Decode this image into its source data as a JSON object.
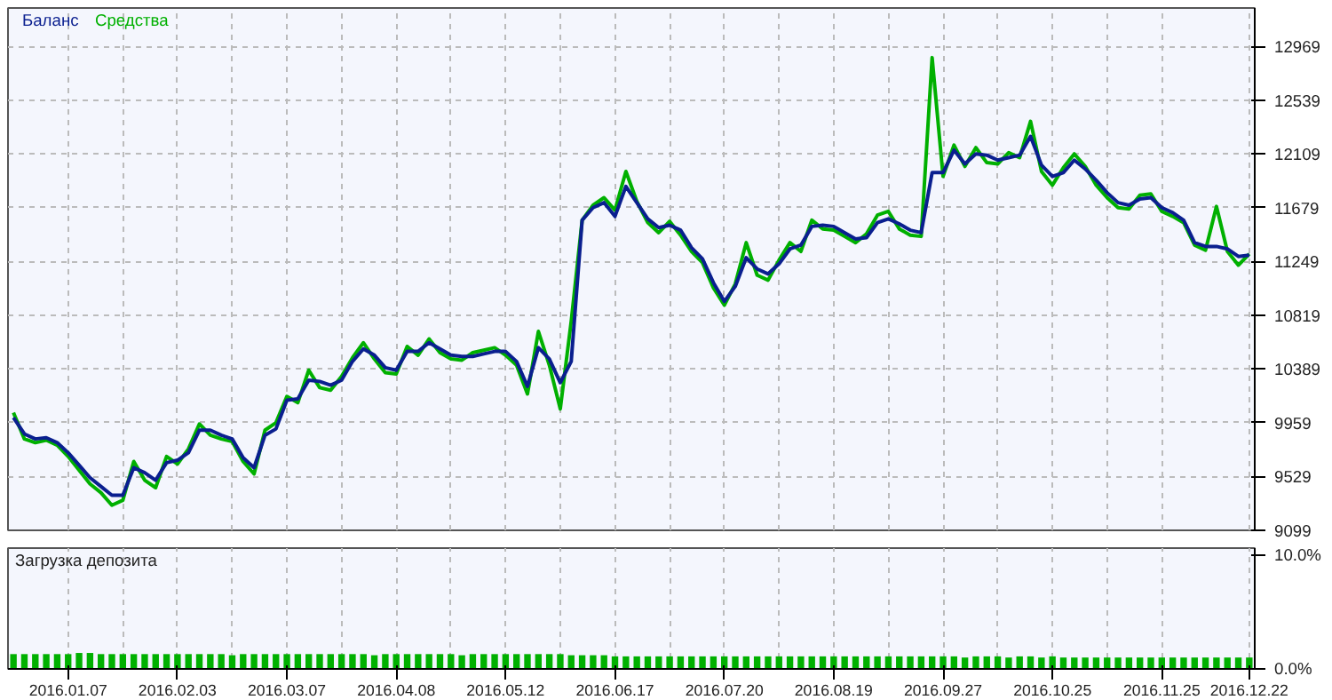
{
  "chart_data": [
    {
      "type": "line",
      "legend": "top left",
      "grid": true,
      "tick_labels": "y",
      "categories": [
        null,
        null,
        null,
        null,
        null,
        "2016.01.07",
        null,
        null,
        null,
        null,
        null,
        null,
        null,
        null,
        null,
        "2016.02.03",
        null,
        null,
        null,
        null,
        null,
        null,
        null,
        null,
        null,
        "2016.03.07",
        null,
        null,
        null,
        null,
        null,
        null,
        null,
        null,
        null,
        "2016.04.08",
        null,
        null,
        null,
        null,
        null,
        null,
        null,
        null,
        null,
        "2016.05.12",
        null,
        null,
        null,
        null,
        null,
        null,
        null,
        null,
        null,
        "2016.06.17",
        null,
        null,
        null,
        null,
        null,
        null,
        null,
        null,
        null,
        "2016.07.20",
        null,
        null,
        null,
        null,
        null,
        null,
        null,
        null,
        null,
        "2016.08.19",
        null,
        null,
        null,
        null,
        null,
        null,
        null,
        null,
        null,
        "2016.09.27",
        null,
        null,
        null,
        null,
        null,
        null,
        null,
        null,
        null,
        "2016.10.25",
        null,
        null,
        null,
        null,
        null,
        null,
        null,
        null,
        null,
        "2016.11.25",
        null,
        null,
        null,
        null,
        null,
        null,
        null,
        "2016.12.22"
      ],
      "ylim": [
        9099,
        13277
      ],
      "yticks": [
        9099,
        9529,
        9959,
        10389,
        10819,
        11249,
        11679,
        12109,
        12539,
        12969
      ],
      "series": [
        {
          "name": "Средства",
          "color": "#00b000",
          "values": [
            10040,
            9830,
            9800,
            9820,
            9780,
            9690,
            9580,
            9470,
            9400,
            9300,
            9340,
            9650,
            9500,
            9440,
            9690,
            9630,
            9750,
            9950,
            9860,
            9830,
            9810,
            9650,
            9550,
            9900,
            9960,
            10170,
            10120,
            10380,
            10240,
            10220,
            10330,
            10480,
            10600,
            10470,
            10360,
            10350,
            10570,
            10500,
            10630,
            10520,
            10470,
            10460,
            10520,
            10540,
            10560,
            10500,
            10420,
            10190,
            10690,
            10420,
            10070,
            10770,
            11580,
            11700,
            11760,
            11660,
            11970,
            11730,
            11560,
            11480,
            11570,
            11460,
            11330,
            11240,
            11040,
            10900,
            11070,
            11400,
            11140,
            11100,
            11260,
            11400,
            11330,
            11580,
            11510,
            11500,
            11450,
            11400,
            11470,
            11620,
            11650,
            11510,
            11460,
            11450,
            12880,
            11930,
            12180,
            12010,
            12160,
            12040,
            12030,
            12120,
            12080,
            12370,
            11970,
            11860,
            12000,
            12110,
            12010,
            11860,
            11760,
            11680,
            11670,
            11780,
            11790,
            11650,
            11610,
            11560,
            11380,
            11340,
            11690,
            11330,
            11220,
            11310
          ]
        },
        {
          "name": "Баланс",
          "color": "#0a1f8f",
          "values": [
            10000,
            9870,
            9830,
            9840,
            9800,
            9720,
            9620,
            9520,
            9450,
            9380,
            9380,
            9600,
            9560,
            9500,
            9640,
            9660,
            9720,
            9900,
            9900,
            9860,
            9830,
            9680,
            9600,
            9860,
            9910,
            10140,
            10150,
            10300,
            10290,
            10260,
            10300,
            10450,
            10550,
            10500,
            10400,
            10380,
            10530,
            10530,
            10600,
            10550,
            10500,
            10490,
            10490,
            10510,
            10530,
            10530,
            10450,
            10250,
            10560,
            10470,
            10280,
            10450,
            11580,
            11680,
            11720,
            11610,
            11850,
            11720,
            11590,
            11520,
            11540,
            11500,
            11360,
            11270,
            11080,
            10930,
            11050,
            11280,
            11190,
            11150,
            11230,
            11350,
            11380,
            11530,
            11540,
            11530,
            11480,
            11430,
            11440,
            11560,
            11590,
            11550,
            11500,
            11480,
            11960,
            11960,
            12140,
            12030,
            12110,
            12100,
            12060,
            12080,
            12100,
            12250,
            12020,
            11930,
            11960,
            12060,
            11990,
            11900,
            11800,
            11720,
            11700,
            11750,
            11760,
            11680,
            11640,
            11580,
            11400,
            11370,
            11370,
            11350,
            11290,
            11300
          ]
        }
      ]
    },
    {
      "type": "bar",
      "title": "Загрузка депозита",
      "grid": "x",
      "categories": [
        null,
        null,
        null,
        null,
        null,
        "2016.01.07",
        null,
        null,
        null,
        null,
        null,
        null,
        null,
        null,
        null,
        "2016.02.03",
        null,
        null,
        null,
        null,
        null,
        null,
        null,
        null,
        null,
        "2016.03.07",
        null,
        null,
        null,
        null,
        null,
        null,
        null,
        null,
        null,
        "2016.04.08",
        null,
        null,
        null,
        null,
        null,
        null,
        null,
        null,
        null,
        "2016.05.12",
        null,
        null,
        null,
        null,
        null,
        null,
        null,
        null,
        null,
        "2016.06.17",
        null,
        null,
        null,
        null,
        null,
        null,
        null,
        null,
        null,
        "2016.07.20",
        null,
        null,
        null,
        null,
        null,
        null,
        null,
        null,
        null,
        "2016.08.19",
        null,
        null,
        null,
        null,
        null,
        null,
        null,
        null,
        null,
        "2016.09.27",
        null,
        null,
        null,
        null,
        null,
        null,
        null,
        null,
        null,
        "2016.10.25",
        null,
        null,
        null,
        null,
        null,
        null,
        null,
        null,
        null,
        "2016.11.25",
        null,
        null,
        null,
        null,
        null,
        null,
        null,
        "2016.12.22"
      ],
      "ylim": [
        0,
        10.6
      ],
      "yticks": [
        {
          "value": 0,
          "label": "0.0%"
        },
        {
          "value": 10,
          "label": "10.0%"
        }
      ],
      "color": "#00b000",
      "values": [
        1.3,
        1.3,
        1.3,
        1.3,
        1.3,
        1.3,
        1.4,
        1.4,
        1.3,
        1.3,
        1.3,
        1.3,
        1.3,
        1.3,
        1.3,
        1.3,
        1.3,
        1.3,
        1.3,
        1.3,
        1.2,
        1.3,
        1.3,
        1.3,
        1.3,
        1.3,
        1.3,
        1.3,
        1.3,
        1.3,
        1.3,
        1.3,
        1.3,
        1.2,
        1.3,
        1.3,
        1.3,
        1.3,
        1.3,
        1.3,
        1.3,
        1.2,
        1.3,
        1.3,
        1.3,
        1.3,
        1.3,
        1.3,
        1.3,
        1.3,
        1.3,
        1.2,
        1.2,
        1.2,
        1.2,
        1.1,
        1.1,
        1.1,
        1.1,
        1.1,
        1.1,
        1.1,
        1.1,
        1.1,
        1.1,
        1.1,
        1.1,
        1.1,
        1.1,
        1.1,
        1.1,
        1.1,
        1.1,
        1.1,
        1.1,
        1.1,
        1.1,
        1.1,
        1.1,
        1.1,
        1.1,
        1.1,
        1.1,
        1.1,
        1.1,
        1.1,
        1.1,
        1.0,
        1.1,
        1.1,
        1.1,
        1.0,
        1.1,
        1.1,
        1.0,
        1.1,
        1.0,
        1.0,
        1.0,
        1.0,
        1.0,
        1.0,
        1.0,
        1.0,
        1.0,
        1.0,
        1.0,
        1.0,
        1.0,
        1.0,
        1.0,
        1.0,
        1.0,
        1.0
      ]
    }
  ]
}
